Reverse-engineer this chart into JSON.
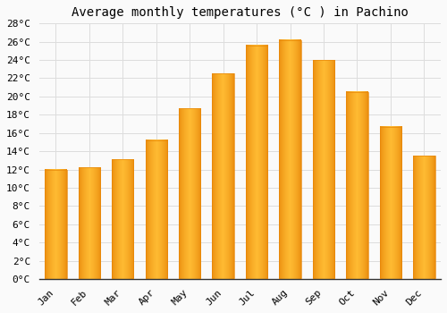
{
  "title": "Average monthly temperatures (°C ) in Pachino",
  "months": [
    "Jan",
    "Feb",
    "Mar",
    "Apr",
    "May",
    "Jun",
    "Jul",
    "Aug",
    "Sep",
    "Oct",
    "Nov",
    "Dec"
  ],
  "values": [
    12.0,
    12.2,
    13.1,
    15.2,
    18.7,
    22.5,
    25.6,
    26.2,
    24.0,
    20.5,
    16.7,
    13.5
  ],
  "bar_color_center": "#FFBB33",
  "bar_color_edge": "#F5A623",
  "bar_color_dark": "#E8880A",
  "ylim": [
    0,
    28
  ],
  "yticks": [
    0,
    2,
    4,
    6,
    8,
    10,
    12,
    14,
    16,
    18,
    20,
    22,
    24,
    26,
    28
  ],
  "background_color": "#FAFAFA",
  "grid_color": "#DDDDDD",
  "title_fontsize": 10,
  "tick_fontsize": 8,
  "font_family": "monospace",
  "bar_width": 0.65
}
